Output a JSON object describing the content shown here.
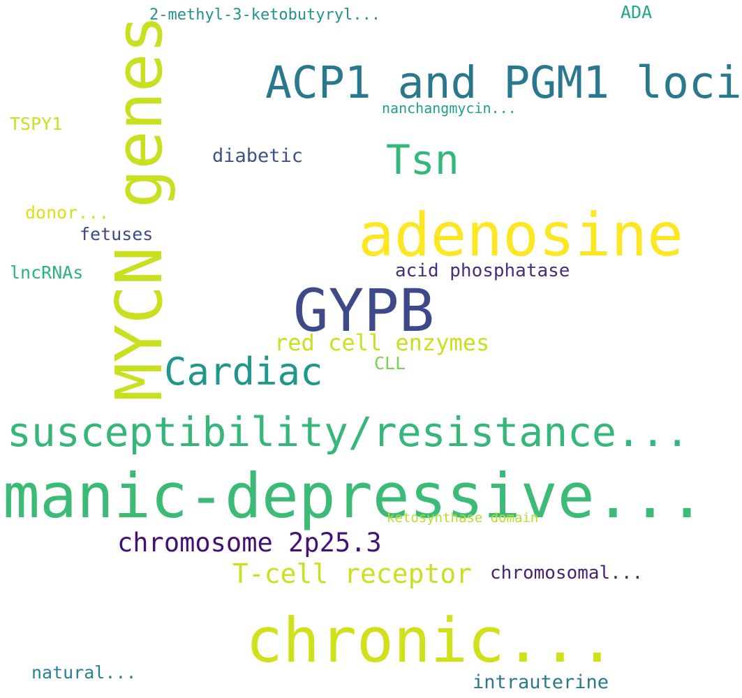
{
  "words": [
    {
      "text": "2-methyl-3-ketobutyryl...",
      "color": "#21918c"
    },
    {
      "text": "ADA",
      "color": "#22a884"
    },
    {
      "text": "MYCN genes",
      "color": "#c8e020"
    },
    {
      "text": "ACP1 and PGM1 loci",
      "color": "#2a788e"
    },
    {
      "text": "nanchangmycin...",
      "color": "#1f9e89"
    },
    {
      "text": "TSPY1",
      "color": "#c8e020"
    },
    {
      "text": "Tsn",
      "color": "#35b779"
    },
    {
      "text": "diabetic",
      "color": "#3b528b"
    },
    {
      "text": "donor...",
      "color": "#d8e219"
    },
    {
      "text": "adenosine",
      "color": "#fde725"
    },
    {
      "text": "fetuses",
      "color": "#3e4989"
    },
    {
      "text": "lncRNAs",
      "color": "#2db27d"
    },
    {
      "text": "acid phosphatase",
      "color": "#472d7b"
    },
    {
      "text": "GYPB",
      "color": "#3e4989"
    },
    {
      "text": "red cell enzymes",
      "color": "#c8e020"
    },
    {
      "text": "CLL",
      "color": "#7ad151"
    },
    {
      "text": "Cardiac",
      "color": "#1f988b"
    },
    {
      "text": "susceptibility/resistance...",
      "color": "#35b779"
    },
    {
      "text": "manic-depressive...",
      "color": "#3bbb75"
    },
    {
      "text": "ketosynthase domain",
      "color": "#b5de2b"
    },
    {
      "text": "chromosome 2p25.3",
      "color": "#440f76"
    },
    {
      "text": "T-cell receptor",
      "color": "#c8e020"
    },
    {
      "text": "chromosomal...",
      "color": "#482173"
    },
    {
      "text": "chronic...",
      "color": "#d0e11c"
    },
    {
      "text": "natural...",
      "color": "#26828e"
    },
    {
      "text": "intrauterine",
      "color": "#2a788e"
    }
  ]
}
